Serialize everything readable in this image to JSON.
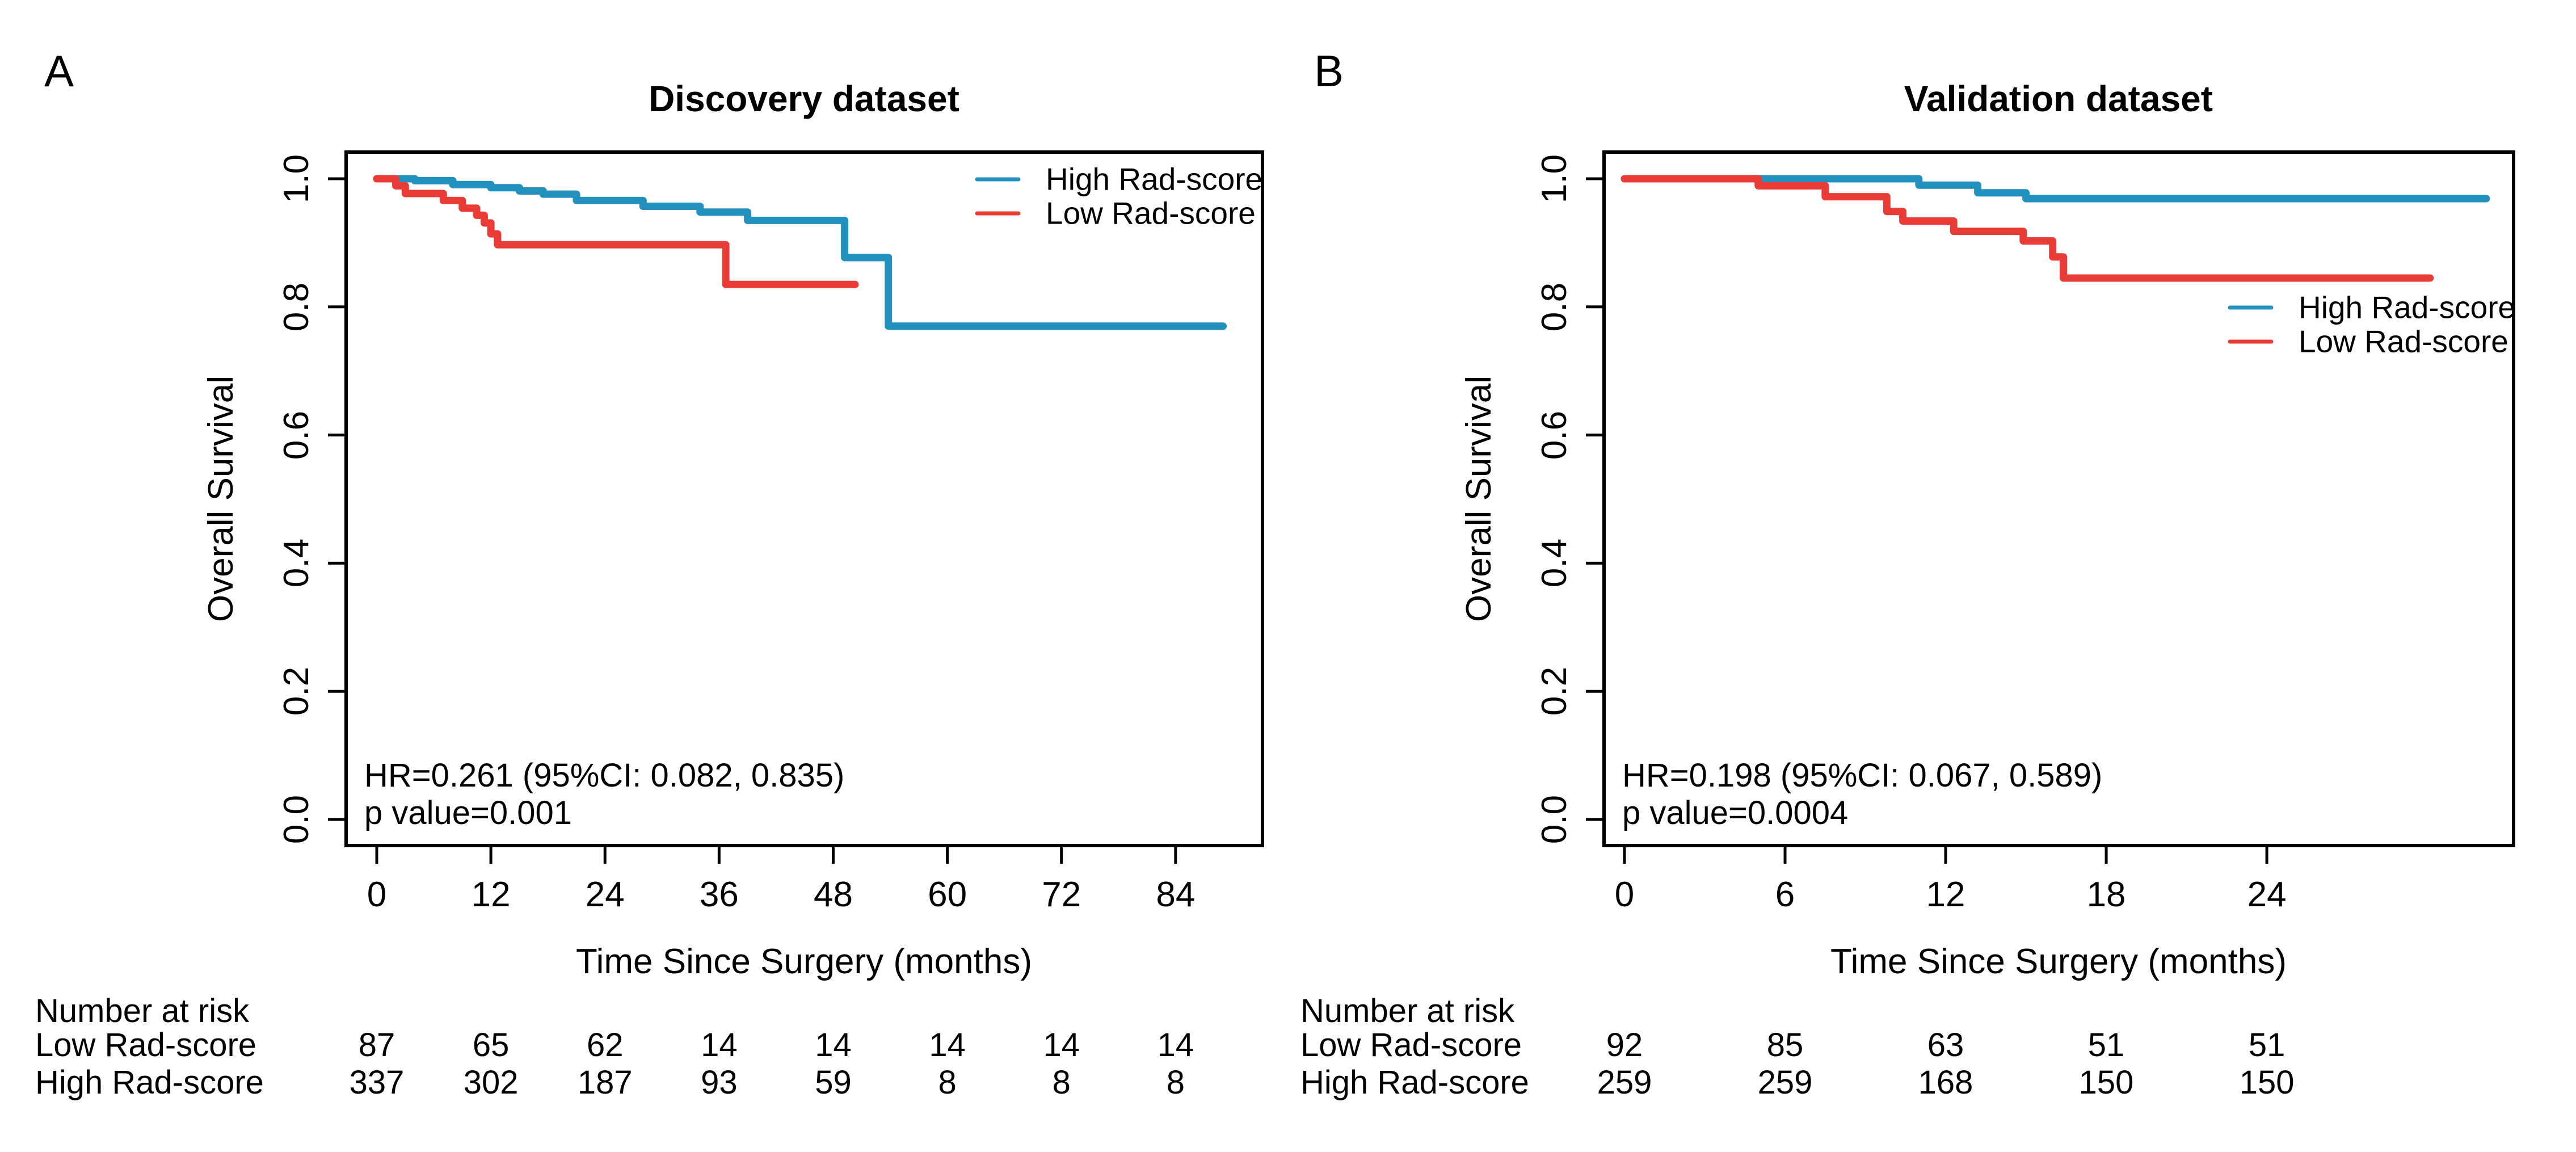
{
  "shared": {
    "ylabel": "Overall Survival",
    "xlabel": "Time Since Surgery (months)",
    "risk_header": "Number at risk",
    "colors": {
      "high_rad_score": "#2391BE",
      "low_rad_score": "#EA3C36",
      "axis": "#000000",
      "background": "#FFFFFF"
    }
  },
  "chart_data": [
    {
      "type": "line",
      "subtype": "kaplan-meier-step",
      "panel_label": "A",
      "title": "Discovery dataset",
      "xlabel": "Time Since Surgery (months)",
      "ylabel": "Overall Survival",
      "xlim": [
        0,
        89
      ],
      "ylim": [
        0.0,
        1.0
      ],
      "grid": false,
      "legend_position": "top-right-inside",
      "x_ticks": [
        0,
        12,
        24,
        36,
        48,
        60,
        72,
        84
      ],
      "y_tick_labels": [
        "1.0",
        "0.8",
        "0.6",
        "0.4",
        "0.2",
        "0.0"
      ],
      "y_tick_values": [
        1.0,
        0.8,
        0.6,
        0.4,
        0.2,
        0.0
      ],
      "annotations": [
        "HR=0.261 (95%CI: 0.082, 0.835)",
        "p value=0.001"
      ],
      "series": [
        {
          "name": "High Rad-score",
          "color": "#2391BE",
          "end_time": 89,
          "steps": [
            [
              0,
              1.0
            ],
            [
              4,
              0.997
            ],
            [
              8,
              0.991
            ],
            [
              12,
              0.986
            ],
            [
              15,
              0.981
            ],
            [
              17.5,
              0.976
            ],
            [
              21,
              0.966
            ],
            [
              28,
              0.957
            ],
            [
              34,
              0.948
            ],
            [
              39,
              0.935
            ],
            [
              49.2,
              0.877
            ],
            [
              53.8,
              0.77
            ]
          ]
        },
        {
          "name": "Low Rad-score",
          "color": "#EA3C36",
          "end_time": 50.3,
          "steps": [
            [
              0,
              1.0
            ],
            [
              2,
              0.989
            ],
            [
              3,
              0.977
            ],
            [
              7,
              0.966
            ],
            [
              9,
              0.954
            ],
            [
              10.5,
              0.943
            ],
            [
              11.3,
              0.931
            ],
            [
              12,
              0.914
            ],
            [
              12.7,
              0.897
            ],
            [
              36.7,
              0.835
            ]
          ]
        }
      ],
      "number_at_risk": {
        "times": [
          0,
          12,
          24,
          36,
          48,
          60,
          72,
          84
        ],
        "rows": [
          {
            "label": "Low Rad-score",
            "values": [
              87,
              65,
              62,
              14,
              14,
              14,
              14,
              14
            ]
          },
          {
            "label": "High Rad-score",
            "values": [
              337,
              302,
              187,
              93,
              59,
              8,
              8,
              8
            ]
          }
        ]
      }
    },
    {
      "type": "line",
      "subtype": "kaplan-meier-step",
      "panel_label": "B",
      "title": "Validation dataset",
      "xlabel": "Time Since Surgery (months)",
      "ylabel": "Overall Survival",
      "xlim": [
        0,
        33
      ],
      "ylim": [
        0.0,
        1.0
      ],
      "grid": false,
      "legend_position": "right-inside",
      "x_ticks": [
        0,
        6,
        12,
        18,
        24
      ],
      "y_tick_labels": [
        "1.0",
        "0.8",
        "0.6",
        "0.4",
        "0.2",
        "0.0"
      ],
      "y_tick_values": [
        1.0,
        0.8,
        0.6,
        0.4,
        0.2,
        0.0
      ],
      "annotations": [
        "HR=0.198 (95%CI: 0.067, 0.589)",
        "p value=0.0004"
      ],
      "series": [
        {
          "name": "High Rad-score",
          "color": "#2391BE",
          "end_time": 32.2,
          "steps": [
            [
              0,
              1.0
            ],
            [
              11,
              0.99
            ],
            [
              13.2,
              0.978
            ],
            [
              15,
              0.969
            ]
          ]
        },
        {
          "name": "Low Rad-score",
          "color": "#EA3C36",
          "end_time": 30.1,
          "steps": [
            [
              0,
              1.0
            ],
            [
              5,
              0.989
            ],
            [
              7.5,
              0.972
            ],
            [
              9.8,
              0.949
            ],
            [
              10.4,
              0.934
            ],
            [
              12.3,
              0.918
            ],
            [
              14.9,
              0.903
            ],
            [
              16,
              0.878
            ],
            [
              16.4,
              0.845
            ]
          ]
        }
      ],
      "number_at_risk": {
        "times": [
          0,
          6,
          12,
          18,
          24
        ],
        "rows": [
          {
            "label": "Low Rad-score",
            "values": [
              92,
              85,
              63,
              51,
              51
            ]
          },
          {
            "label": "High Rad-score",
            "values": [
              259,
              259,
              168,
              150,
              150
            ]
          }
        ]
      }
    }
  ]
}
